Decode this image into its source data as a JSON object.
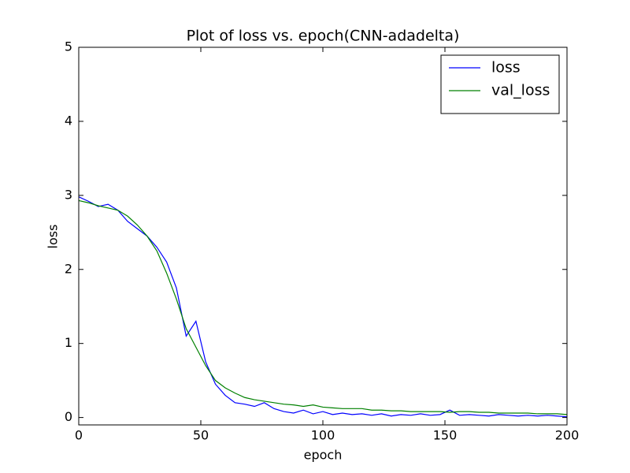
{
  "chart_data": {
    "type": "line",
    "title": "Plot of loss vs. epoch(CNN-adadelta)",
    "x_label": "epoch",
    "y_label": "loss",
    "x": [
      0,
      4,
      8,
      12,
      16,
      20,
      24,
      28,
      32,
      36,
      40,
      44,
      48,
      52,
      56,
      60,
      64,
      68,
      72,
      76,
      80,
      84,
      88,
      92,
      96,
      100,
      104,
      108,
      112,
      116,
      120,
      124,
      128,
      132,
      136,
      140,
      144,
      148,
      152,
      156,
      160,
      164,
      168,
      172,
      176,
      180,
      184,
      188,
      192,
      196,
      200
    ],
    "series": [
      {
        "name": "loss",
        "color": "#0000ff",
        "values": [
          2.98,
          2.92,
          2.85,
          2.88,
          2.8,
          2.65,
          2.55,
          2.45,
          2.3,
          2.1,
          1.75,
          1.1,
          1.3,
          0.75,
          0.45,
          0.3,
          0.2,
          0.18,
          0.15,
          0.2,
          0.12,
          0.08,
          0.06,
          0.1,
          0.05,
          0.08,
          0.04,
          0.06,
          0.04,
          0.05,
          0.03,
          0.05,
          0.02,
          0.04,
          0.03,
          0.05,
          0.03,
          0.04,
          0.1,
          0.03,
          0.04,
          0.03,
          0.02,
          0.04,
          0.03,
          0.02,
          0.03,
          0.02,
          0.03,
          0.02,
          0.01
        ]
      },
      {
        "name": "val_loss",
        "color": "#008000",
        "values": [
          2.93,
          2.9,
          2.86,
          2.83,
          2.8,
          2.72,
          2.6,
          2.45,
          2.25,
          1.95,
          1.6,
          1.2,
          0.95,
          0.7,
          0.5,
          0.4,
          0.33,
          0.27,
          0.24,
          0.22,
          0.2,
          0.18,
          0.17,
          0.15,
          0.17,
          0.14,
          0.13,
          0.12,
          0.12,
          0.12,
          0.1,
          0.1,
          0.09,
          0.09,
          0.08,
          0.08,
          0.08,
          0.08,
          0.07,
          0.08,
          0.08,
          0.07,
          0.07,
          0.06,
          0.06,
          0.06,
          0.06,
          0.05,
          0.05,
          0.05,
          0.04
        ]
      }
    ],
    "xlim": [
      0,
      200
    ],
    "ylim": [
      -0.1,
      5
    ],
    "xticks": [
      0,
      50,
      100,
      150,
      200
    ],
    "yticks": [
      0,
      1,
      2,
      3,
      4,
      5
    ],
    "grid": false,
    "legend": "upper right"
  }
}
